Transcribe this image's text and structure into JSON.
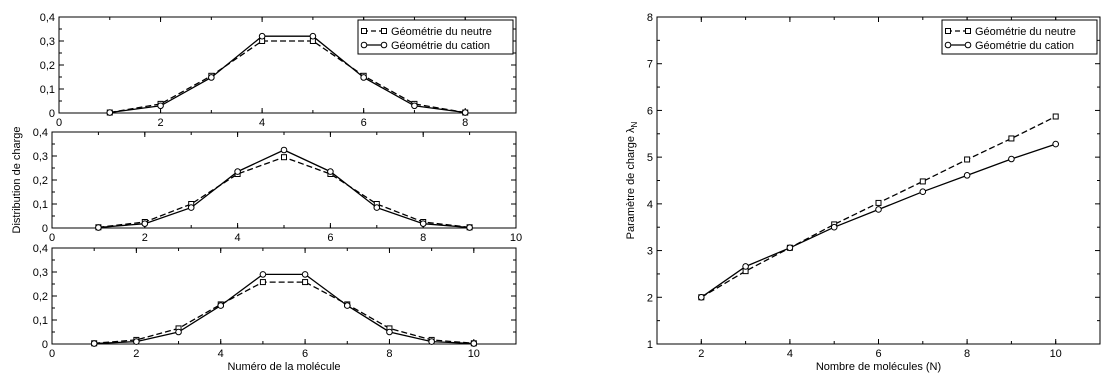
{
  "chart_data": [
    {
      "type": "line",
      "xlim": [
        0,
        9
      ],
      "ylim": [
        0,
        0.4
      ],
      "xticks": [
        "0",
        "2",
        "4",
        "6",
        "8"
      ],
      "yticks": [
        "0",
        "0,1",
        "0,2",
        "0,3",
        "0,4"
      ],
      "ylabel": "Distribution de charge",
      "legend": "top-right",
      "series": [
        {
          "name": "Géométrie du neutre",
          "marker": "square",
          "dash": "dashed",
          "x": [
            1,
            2,
            3,
            4,
            5,
            6,
            7,
            8
          ],
          "y": [
            0.002,
            0.038,
            0.155,
            0.3,
            0.3,
            0.155,
            0.038,
            0.002
          ]
        },
        {
          "name": "Géométrie du cation",
          "marker": "circle",
          "dash": "solid",
          "x": [
            1,
            2,
            3,
            4,
            5,
            6,
            7,
            8
          ],
          "y": [
            0.002,
            0.03,
            0.148,
            0.32,
            0.32,
            0.148,
            0.03,
            0.002
          ]
        }
      ]
    },
    {
      "type": "line",
      "xlim": [
        0,
        10
      ],
      "ylim": [
        0,
        0.4
      ],
      "xticks": [
        "0",
        "2",
        "4",
        "6",
        "8",
        "10"
      ],
      "yticks": [
        "0",
        "0,1",
        "0,2",
        "0,3",
        "0,4"
      ],
      "series": [
        {
          "marker": "square",
          "dash": "dashed",
          "x": [
            1,
            2,
            3,
            4,
            5,
            6,
            7,
            8,
            9
          ],
          "y": [
            0.003,
            0.025,
            0.1,
            0.225,
            0.295,
            0.225,
            0.1,
            0.025,
            0.003
          ]
        },
        {
          "marker": "circle",
          "dash": "solid",
          "x": [
            1,
            2,
            3,
            4,
            5,
            6,
            7,
            8,
            9
          ],
          "y": [
            0.002,
            0.018,
            0.085,
            0.235,
            0.325,
            0.235,
            0.085,
            0.018,
            0.002
          ]
        }
      ]
    },
    {
      "type": "line",
      "xlim": [
        0,
        11
      ],
      "ylim": [
        0,
        0.4
      ],
      "xticks": [
        "0",
        "2",
        "4",
        "6",
        "8",
        "10"
      ],
      "yticks": [
        "0",
        "0,1",
        "0,2",
        "0,3",
        "0,4"
      ],
      "xlabel": "Numéro de la molécule",
      "series": [
        {
          "marker": "square",
          "dash": "dashed",
          "x": [
            1,
            2,
            3,
            4,
            5,
            6,
            7,
            8,
            9,
            10
          ],
          "y": [
            0.003,
            0.017,
            0.065,
            0.165,
            0.258,
            0.258,
            0.165,
            0.065,
            0.017,
            0.003
          ]
        },
        {
          "marker": "circle",
          "dash": "solid",
          "x": [
            1,
            2,
            3,
            4,
            5,
            6,
            7,
            8,
            9,
            10
          ],
          "y": [
            0.002,
            0.01,
            0.05,
            0.16,
            0.29,
            0.29,
            0.16,
            0.05,
            0.01,
            0.002
          ]
        }
      ]
    },
    {
      "type": "line",
      "xlim": [
        1,
        11
      ],
      "ylim": [
        1,
        8
      ],
      "xticks": [
        "2",
        "4",
        "6",
        "8",
        "10"
      ],
      "yticks": [
        "1",
        "2",
        "3",
        "4",
        "5",
        "6",
        "7",
        "8"
      ],
      "xlabel": "Nombre de molécules (N)",
      "ylabel": "Paramètre de charge λ",
      "ylabel_subscript": "N",
      "legend": "top-right",
      "series": [
        {
          "name": "Géométrie du neutre",
          "marker": "square",
          "dash": "dashed",
          "x": [
            2,
            3,
            4,
            5,
            6,
            7,
            8,
            9,
            10
          ],
          "y": [
            2.0,
            2.56,
            3.06,
            3.56,
            4.02,
            4.48,
            4.95,
            5.4,
            5.87
          ]
        },
        {
          "name": "Géométrie du cation",
          "marker": "circle",
          "dash": "solid",
          "x": [
            2,
            3,
            4,
            5,
            6,
            7,
            8,
            9,
            10
          ],
          "y": [
            2.0,
            2.66,
            3.06,
            3.5,
            3.88,
            4.26,
            4.61,
            4.96,
            5.28
          ]
        }
      ]
    }
  ]
}
